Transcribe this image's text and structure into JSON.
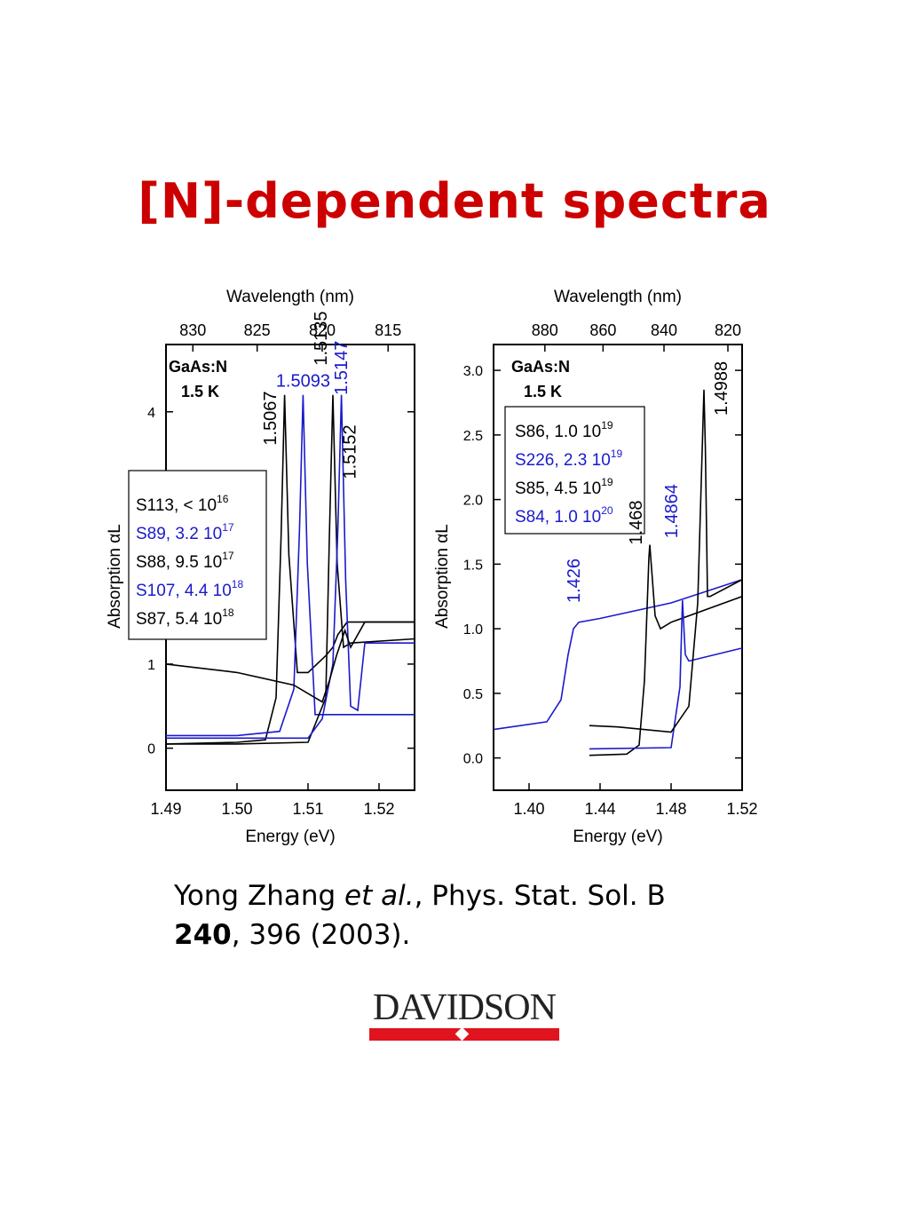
{
  "title": "[N]-dependent spectra",
  "citation": {
    "authors": "Yong Zhang ",
    "etal": "et al.",
    "journal": ", Phys. Stat. Sol. B",
    "volume": "240",
    "rest": ", 396 (2003)."
  },
  "logo": {
    "text": "DAVIDSON",
    "colors": {
      "bar": "#e0141e"
    }
  },
  "colors": {
    "black": "#000000",
    "blue": "#1a1acc",
    "title": "#cc0000"
  },
  "chart_data": [
    {
      "type": "line",
      "xlabel": "Energy (eV)",
      "ylabel": "Absorption αL",
      "top_xlabel": "Wavelength (nm)",
      "xlim": [
        1.49,
        1.525
      ],
      "ylim": [
        -0.5,
        4.8
      ],
      "xticks": [
        "1.49",
        "1.50",
        "1.51",
        "1.52"
      ],
      "xtick_values": [
        1.49,
        1.5,
        1.51,
        1.52
      ],
      "yticks": [
        "0",
        "1",
        "4"
      ],
      "ytick_values": [
        0,
        1,
        4
      ],
      "top_ticks": [
        "830",
        "825",
        "820",
        "815"
      ],
      "top_tick_nm": [
        830,
        825,
        820,
        815
      ],
      "sample": [
        "GaAs:N",
        "1.5 K"
      ],
      "legend": [
        {
          "label": "S113, < 10",
          "exp": "16",
          "color": "black"
        },
        {
          "label": "S89, 3.2 10",
          "exp": "17",
          "color": "blue"
        },
        {
          "label": "S88, 9.5 10",
          "exp": "17",
          "color": "black"
        },
        {
          "label": "S107, 4.4 10",
          "exp": "18",
          "color": "blue"
        },
        {
          "label": "S87, 5.4 10",
          "exp": "18",
          "color": "black"
        }
      ],
      "annotations": [
        {
          "text": "1.5093",
          "x": 1.5093,
          "y": 4.3,
          "color": "blue",
          "rotate": false
        },
        {
          "text": "1.5067",
          "x": 1.5055,
          "y": 3.6,
          "color": "black",
          "rotate": true
        },
        {
          "text": "1.5135",
          "x": 1.5126,
          "y": 4.55,
          "color": "black",
          "rotate": true
        },
        {
          "text": "1.5147",
          "x": 1.5155,
          "y": 4.2,
          "color": "blue",
          "rotate": true
        },
        {
          "text": "1.5152",
          "x": 1.5167,
          "y": 3.2,
          "color": "black",
          "rotate": true
        }
      ],
      "series": [
        {
          "color": "black",
          "x": [
            1.49,
            1.5,
            1.504,
            1.5055,
            1.5062,
            1.5067,
            1.5073,
            1.5085,
            1.51,
            1.5125,
            1.5135,
            1.5142,
            1.5155,
            1.52,
            1.525
          ],
          "y": [
            0.05,
            0.07,
            0.1,
            0.6,
            2.5,
            4.2,
            2.3,
            0.9,
            0.9,
            1.1,
            1.2,
            1.35,
            1.5,
            1.5,
            1.5
          ]
        },
        {
          "color": "blue",
          "x": [
            1.49,
            1.5,
            1.506,
            1.508,
            1.5088,
            1.5093,
            1.5099,
            1.511,
            1.512,
            1.5125,
            1.516,
            1.525
          ],
          "y": [
            0.15,
            0.15,
            0.2,
            0.7,
            2.6,
            4.2,
            2.2,
            0.4,
            0.4,
            0.4,
            0.4,
            0.4
          ]
        },
        {
          "color": "black",
          "x": [
            1.49,
            1.5,
            1.51,
            1.5125,
            1.513,
            1.5135,
            1.5141,
            1.515,
            1.516,
            1.525
          ],
          "y": [
            0.05,
            0.05,
            0.07,
            0.6,
            2.5,
            4.2,
            2.2,
            1.2,
            1.25,
            1.3
          ]
        },
        {
          "color": "blue",
          "x": [
            1.49,
            1.51,
            1.512,
            1.5135,
            1.5142,
            1.5147,
            1.5153,
            1.516,
            1.517,
            1.518,
            1.525
          ],
          "y": [
            0.12,
            0.12,
            0.35,
            1.0,
            2.6,
            4.2,
            2.0,
            0.5,
            0.45,
            1.25,
            1.25
          ]
        },
        {
          "color": "black",
          "x": [
            1.49,
            1.5,
            1.508,
            1.511,
            1.512,
            1.513,
            1.514,
            1.5152,
            1.516,
            1.518,
            1.525
          ],
          "y": [
            1.0,
            0.9,
            0.75,
            0.6,
            0.55,
            0.8,
            1.1,
            1.4,
            1.2,
            1.5,
            1.5
          ]
        }
      ]
    },
    {
      "type": "line",
      "xlabel": "Energy (eV)",
      "ylabel": "Absorption αL",
      "top_xlabel": "Wavelength (nm)",
      "xlim": [
        1.38,
        1.52
      ],
      "ylim": [
        -0.25,
        3.2
      ],
      "xticks": [
        "1.40",
        "1.44",
        "1.48",
        "1.52"
      ],
      "xtick_values": [
        1.4,
        1.44,
        1.48,
        1.52
      ],
      "yticks": [
        "0.0",
        "0.5",
        "1.0",
        "1.5",
        "2.0",
        "2.5",
        "3.0"
      ],
      "ytick_values": [
        0,
        0.5,
        1.0,
        1.5,
        2.0,
        2.5,
        3.0
      ],
      "top_ticks": [
        "880",
        "860",
        "840",
        "820"
      ],
      "top_tick_nm": [
        880,
        860,
        840,
        820
      ],
      "sample": [
        "GaAs:N",
        "1.5 K"
      ],
      "legend": [
        {
          "label": "S86, 1.0 10",
          "exp": "19",
          "color": "black"
        },
        {
          "label": "S226, 2.3 10",
          "exp": "19",
          "color": "blue"
        },
        {
          "label": "S85, 4.5 10",
          "exp": "19",
          "color": "black"
        },
        {
          "label": "S84, 1.0 10",
          "exp": "20",
          "color": "blue"
        }
      ],
      "annotations": [
        {
          "text": "1.426",
          "x": 1.4285,
          "y": 1.2,
          "color": "blue",
          "rotate": true
        },
        {
          "text": "1.468",
          "x": 1.4635,
          "y": 1.65,
          "color": "black",
          "rotate": true
        },
        {
          "text": "1.4864",
          "x": 1.4835,
          "y": 1.7,
          "color": "blue",
          "rotate": true
        },
        {
          "text": "1.4988",
          "x": 1.5115,
          "y": 2.65,
          "color": "black",
          "rotate": true
        }
      ],
      "series": [
        {
          "color": "blue",
          "x": [
            1.38,
            1.41,
            1.418,
            1.422,
            1.425,
            1.428,
            1.44,
            1.48,
            1.52
          ],
          "y": [
            0.22,
            0.28,
            0.45,
            0.8,
            1.0,
            1.05,
            1.08,
            1.2,
            1.38
          ]
        },
        {
          "color": "black",
          "x": [
            1.434,
            1.455,
            1.462,
            1.465,
            1.4675,
            1.468,
            1.471,
            1.474,
            1.48,
            1.52
          ],
          "y": [
            0.02,
            0.03,
            0.1,
            0.6,
            1.55,
            1.65,
            1.1,
            1.0,
            1.05,
            1.25
          ]
        },
        {
          "color": "blue",
          "x": [
            1.434,
            1.48,
            1.485,
            1.4864,
            1.488,
            1.49,
            1.52
          ],
          "y": [
            0.07,
            0.08,
            0.55,
            1.22,
            0.8,
            0.75,
            0.85
          ]
        },
        {
          "color": "black",
          "x": [
            1.434,
            1.45,
            1.48,
            1.49,
            1.495,
            1.4985,
            1.4993,
            1.5005,
            1.502,
            1.52
          ],
          "y": [
            0.25,
            0.24,
            0.2,
            0.4,
            1.2,
            2.85,
            2.4,
            1.25,
            1.25,
            1.38
          ]
        }
      ]
    }
  ]
}
